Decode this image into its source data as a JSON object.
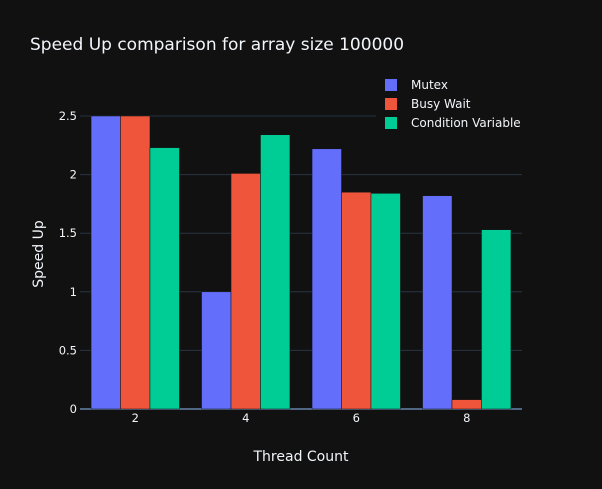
{
  "chart_data": {
    "type": "bar",
    "title": "Speed Up comparison for array size 100000",
    "xlabel": "Thread Count",
    "ylabel": "Speed Up",
    "categories": [
      "2",
      "4",
      "6",
      "8"
    ],
    "y_ticks": [
      0,
      0.5,
      1,
      1.5,
      2,
      2.5
    ],
    "ylim": [
      0,
      2.5
    ],
    "grid": true,
    "legend_position": "top-right",
    "series": [
      {
        "name": "Mutex",
        "color": "#636efa",
        "values": [
          2.5,
          1.0,
          2.22,
          1.82
        ]
      },
      {
        "name": "Busy Wait",
        "color": "#ef553b",
        "values": [
          2.5,
          2.01,
          1.85,
          0.08
        ]
      },
      {
        "name": "Condition Variable",
        "color": "#00cc96",
        "values": [
          2.23,
          2.34,
          1.84,
          1.53
        ]
      }
    ]
  }
}
